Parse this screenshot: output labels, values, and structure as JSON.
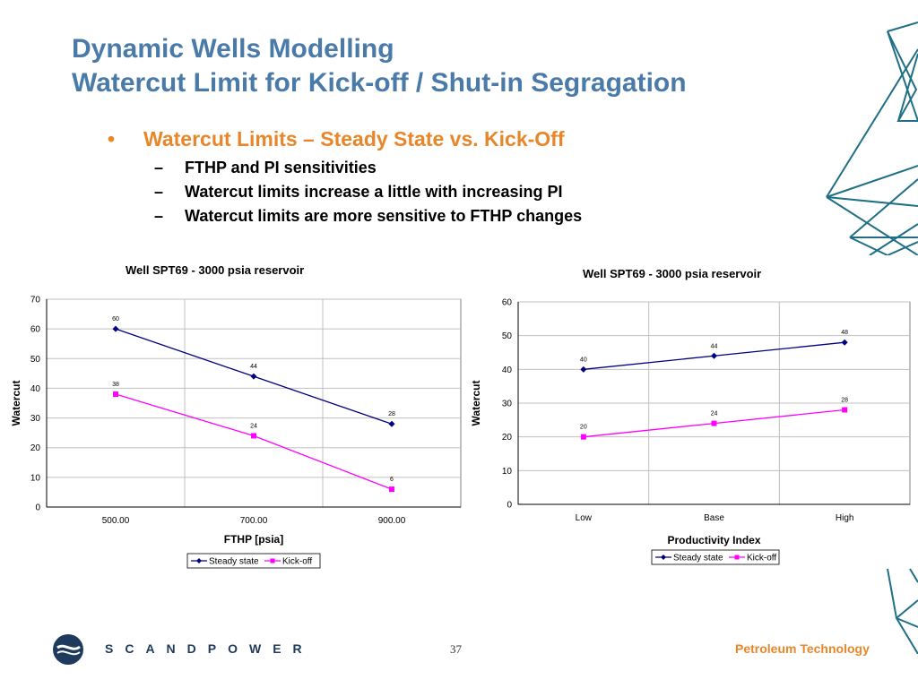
{
  "slide": {
    "title_line1": "Dynamic Wells Modelling",
    "title_line2": "Watercut Limit for Kick-off / Shut-in Segragation",
    "bullet_main": "Watercut Limits – Steady State vs. Kick-Off",
    "bullet_dot": "•",
    "sub_dash": "–",
    "sub_bullets": [
      "FTHP and PI sensitivities",
      "Watercut limits increase a little with increasing PI",
      "Watercut limits are more sensitive to FTHP changes"
    ],
    "page_number": "37",
    "brand": "SCANDPOWER",
    "tagline": "Petroleum Technology"
  },
  "colors": {
    "title": "#4a7aa8",
    "bullet": "#e8862a",
    "steady": "#000080",
    "kickoff": "#ff00ff",
    "decor": "#1f6f86",
    "logo": "#1e3a5c"
  },
  "chart_data": [
    {
      "type": "line",
      "title": "Well SPT69 - 3000 psia reservoir",
      "xlabel": "FTHP [psia]",
      "ylabel": "Watercut",
      "categories": [
        "500.00",
        "700.00",
        "900.00"
      ],
      "ylim": [
        0,
        70
      ],
      "yticks": [
        "0",
        "10",
        "20",
        "30",
        "40",
        "50",
        "60",
        "70"
      ],
      "grid": true,
      "legend": "bottom",
      "series": [
        {
          "name": "Steady state",
          "values": [
            60,
            44,
            28
          ],
          "labels": [
            "60",
            "44",
            "28"
          ]
        },
        {
          "name": "Kick-off",
          "values": [
            38,
            24,
            6
          ],
          "labels": [
            "38",
            "24",
            "6"
          ]
        }
      ]
    },
    {
      "type": "line",
      "title": "Well SPT69 - 3000 psia reservoir",
      "xlabel": "Productivity Index",
      "ylabel": "Watercut",
      "categories": [
        "Low",
        "Base",
        "High"
      ],
      "ylim": [
        0,
        60
      ],
      "yticks": [
        "0",
        "10",
        "20",
        "30",
        "40",
        "50",
        "60"
      ],
      "grid": true,
      "legend": "bottom",
      "series": [
        {
          "name": "Steady state",
          "values": [
            40,
            44,
            48
          ],
          "labels": [
            "40",
            "44",
            "48"
          ]
        },
        {
          "name": "Kick-off",
          "values": [
            20,
            24,
            28
          ],
          "labels": [
            "20",
            "24",
            "28"
          ]
        }
      ]
    }
  ]
}
